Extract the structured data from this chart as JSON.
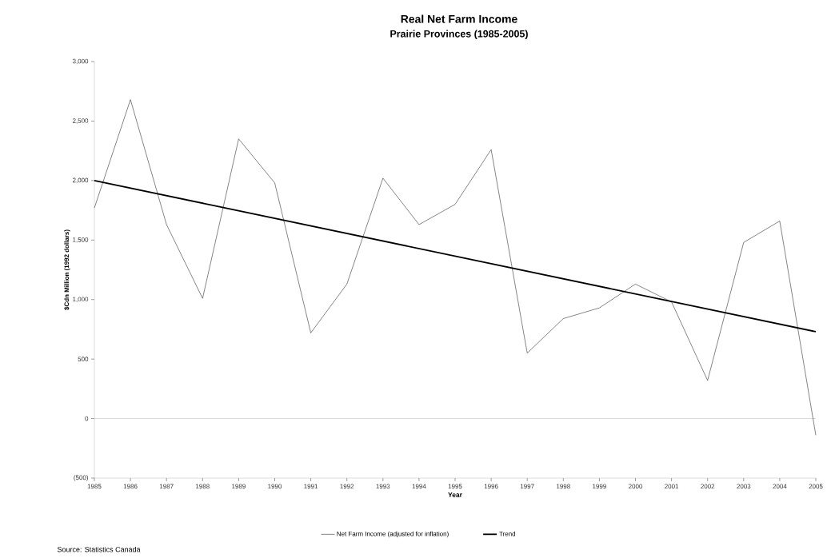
{
  "chart_data": {
    "type": "line",
    "title": "Real Net Farm Income",
    "subtitle": "Prairie Provinces (1985-2005)",
    "xlabel": "Year",
    "ylabel": "$Cdn Million (1992 dollars)",
    "annotations": [
      "Source: Statistics Canada"
    ],
    "x": [
      1985,
      1986,
      1987,
      1988,
      1989,
      1990,
      1991,
      1992,
      1993,
      1994,
      1995,
      1996,
      1997,
      1998,
      1999,
      2000,
      2001,
      2002,
      2003,
      2004,
      2005
    ],
    "series": [
      {
        "name": "Net Farm Income (adjusted for inflation)",
        "color": "#333333",
        "values": [
          1770,
          2680,
          1630,
          1010,
          2350,
          1980,
          720,
          1130,
          2020,
          1630,
          1800,
          2260,
          550,
          840,
          930,
          1130,
          980,
          320,
          1480,
          1660,
          -140
        ]
      },
      {
        "name": "Trend",
        "color": "#000000",
        "x": [
          1985,
          2005
        ],
        "values": [
          2000,
          730
        ]
      }
    ],
    "xlim": [
      1985,
      2005
    ],
    "xticks": [
      1985,
      1986,
      1987,
      1988,
      1989,
      1990,
      1991,
      1992,
      1993,
      1994,
      1995,
      1996,
      1997,
      1998,
      1999,
      2000,
      2001,
      2002,
      2003,
      2004,
      2005
    ],
    "ylim": [
      -500,
      3000
    ],
    "yticks": [
      {
        "value": -500,
        "label": "(500)"
      },
      0,
      {
        "value": 500,
        "label": "500"
      },
      {
        "value": 1000,
        "label": "1,000"
      },
      {
        "value": 1500,
        "label": "1,500"
      },
      {
        "value": 2000,
        "label": "2,000"
      },
      {
        "value": 2500,
        "label": "2,500"
      },
      {
        "value": 3000,
        "label": "3,000"
      }
    ],
    "ref_lines": [
      {
        "axis": "y",
        "value": 0,
        "color": "#999999"
      }
    ],
    "grid": false,
    "legend": "bottom",
    "marker": "none",
    "line_style": "solid"
  }
}
